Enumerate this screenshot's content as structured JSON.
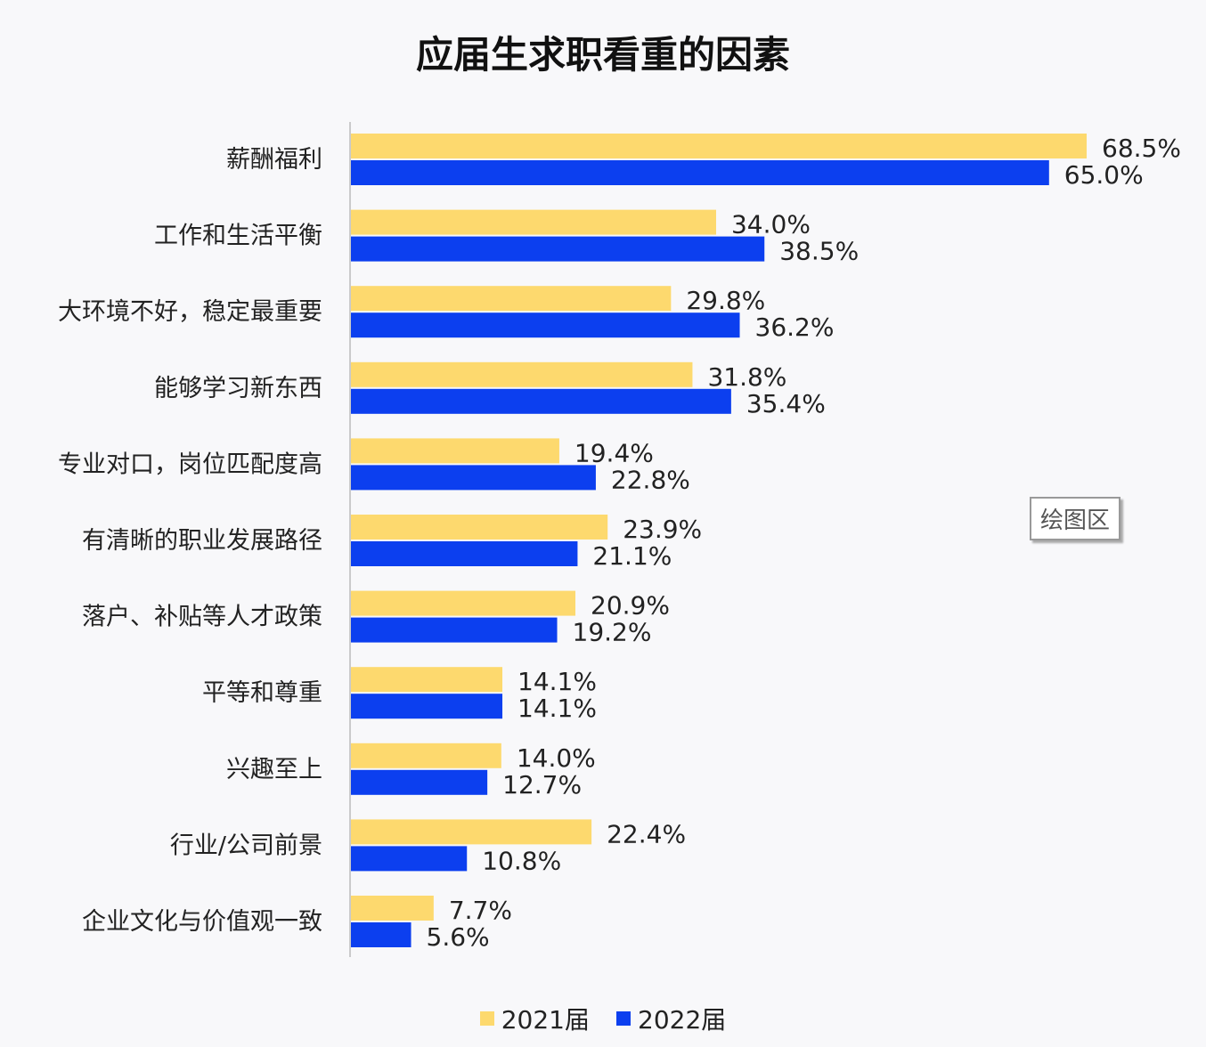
{
  "chart_data": {
    "type": "bar",
    "orientation": "horizontal",
    "title": "应届生求职看重的因素",
    "categories": [
      "薪酬福利",
      "工作和生活平衡",
      "大环境不好，稳定最重要",
      "能够学习新东西",
      "专业对口，岗位匹配度高",
      "有清晰的职业发展路径",
      "落户、补贴等人才政策",
      "平等和尊重",
      "兴趣至上",
      "行业/公司前景",
      "企业文化与价值观一致"
    ],
    "series": [
      {
        "name": "2021届",
        "color": "#fdd96e",
        "values": [
          68.5,
          34.0,
          29.8,
          31.8,
          19.4,
          23.9,
          20.9,
          14.1,
          14.0,
          22.4,
          7.7
        ]
      },
      {
        "name": "2022届",
        "color": "#0c3fef",
        "values": [
          65.0,
          38.5,
          36.2,
          35.4,
          22.8,
          21.1,
          19.2,
          14.1,
          12.7,
          10.8,
          5.6
        ]
      }
    ],
    "value_suffix": "%",
    "xlim": [
      0,
      70
    ],
    "grid": false,
    "legend_position": "bottom"
  },
  "tooltip": "绘图区"
}
